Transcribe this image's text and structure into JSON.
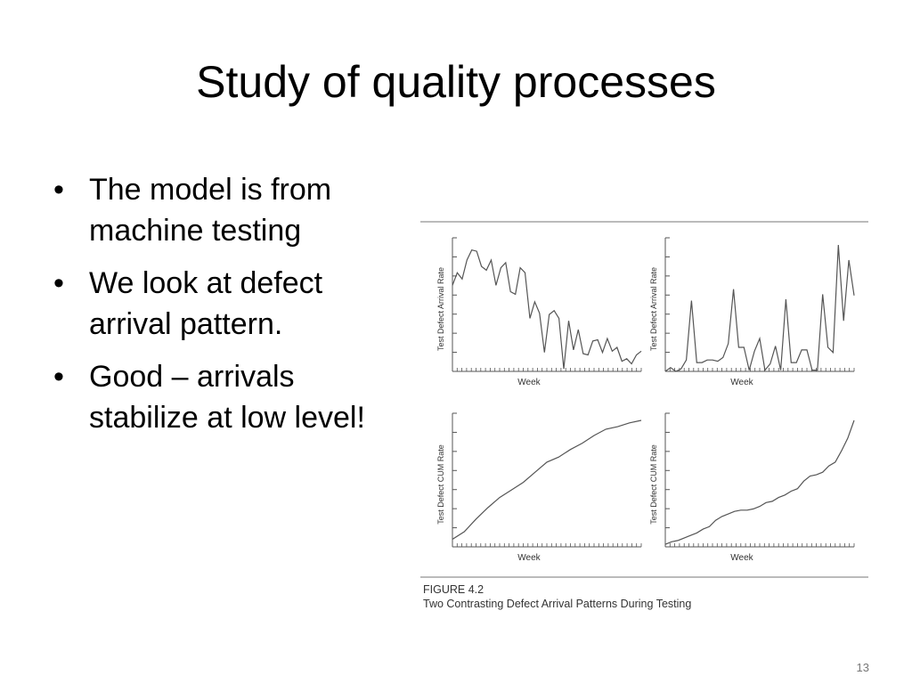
{
  "slide": {
    "title": "Study of quality processes",
    "bullets": [
      "The model is from machine testing",
      "We look at defect arrival pattern.",
      "Good – arrivals stabilize at low level!"
    ],
    "bullet_glyph": "•",
    "number": "13"
  },
  "figure": {
    "label": "FIGURE 4.2",
    "caption": "Two Contrasting Defect Arrival Patterns During Testing"
  },
  "chart_data": [
    {
      "type": "line",
      "xlabel": "Week",
      "ylabel": "Test Defect Arrival Rate",
      "x_range": [
        0,
        35
      ],
      "ylim": [
        0,
        10
      ],
      "y": [
        6.8,
        7.8,
        7.3,
        8.8,
        9.6,
        9.5,
        8.3,
        8.0,
        8.8,
        6.8,
        8.2,
        8.6,
        6.3,
        6.1,
        8.2,
        7.8,
        4.2,
        5.5,
        4.6,
        1.5,
        4.5,
        4.8,
        4.2,
        0.2,
        4.0,
        1.7,
        3.3,
        1.4,
        1.3,
        2.4,
        2.5,
        1.5,
        2.6,
        1.6,
        1.9,
        0.8,
        1.0,
        0.6,
        1.3,
        1.6
      ]
    },
    {
      "type": "line",
      "xlabel": "Week",
      "ylabel": "Test Defect Arrival Rate",
      "x_range": [
        0,
        35
      ],
      "ylim": [
        0,
        10
      ],
      "y": [
        0.0,
        0.3,
        0.0,
        0.2,
        0.9,
        5.6,
        0.7,
        0.7,
        0.9,
        0.9,
        0.8,
        1.1,
        2.2,
        6.5,
        1.9,
        1.9,
        0.1,
        1.6,
        2.6,
        0.1,
        0.6,
        2.0,
        0.1,
        5.7,
        0.7,
        0.7,
        1.7,
        1.7,
        0.1,
        0.1,
        6.1,
        1.9,
        1.5,
        10.0,
        4.0,
        8.8,
        6.0
      ]
    },
    {
      "type": "line",
      "xlabel": "Week",
      "ylabel": "Test Defect CUM Rate",
      "x_range": [
        0,
        35
      ],
      "ylim": [
        0,
        10
      ],
      "y": [
        0.6,
        1.2,
        2.2,
        3.1,
        3.9,
        4.5,
        5.1,
        5.9,
        6.7,
        7.1,
        7.7,
        8.2,
        8.8,
        9.3,
        9.5,
        9.8,
        10.0
      ]
    },
    {
      "type": "line",
      "xlabel": "Week",
      "ylabel": "Test Defect CUM Rate",
      "x_range": [
        0,
        35
      ],
      "ylim": [
        0,
        10
      ],
      "y": [
        0.2,
        0.4,
        0.5,
        0.7,
        0.9,
        1.1,
        1.4,
        1.6,
        2.1,
        2.4,
        2.6,
        2.8,
        2.9,
        2.9,
        3.0,
        3.2,
        3.5,
        3.6,
        3.9,
        4.1,
        4.4,
        4.6,
        5.2,
        5.6,
        5.7,
        5.9,
        6.4,
        6.7,
        7.6,
        8.6,
        10.0
      ]
    }
  ]
}
